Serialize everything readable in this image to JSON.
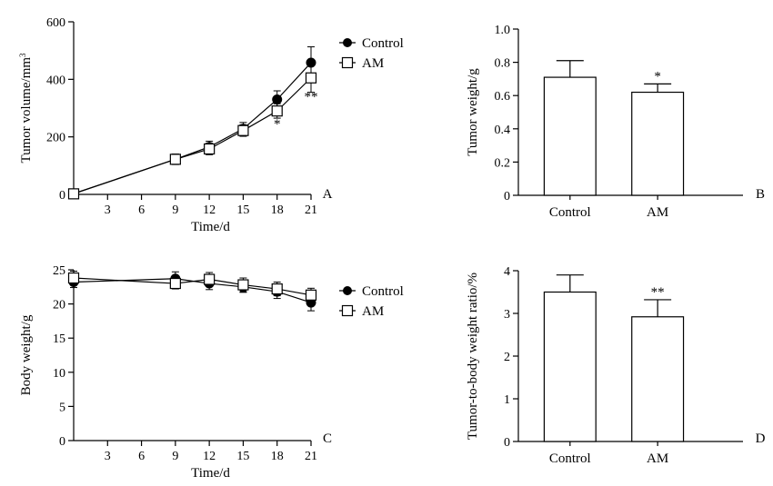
{
  "chart_data": [
    {
      "panel": "A",
      "type": "line",
      "xlabel": "Time/d",
      "ylabel": "Tumor volume/mm",
      "ylabel_sup": "3",
      "xlim": [
        0,
        21
      ],
      "ylim": [
        0,
        600
      ],
      "xticks": [
        3,
        6,
        9,
        12,
        15,
        18,
        21
      ],
      "yticks": [
        0,
        200,
        400,
        600
      ],
      "legend": "top-right",
      "series": [
        {
          "name": "Control",
          "marker": "filled-circle",
          "x": [
            0,
            9,
            12,
            15,
            18,
            21
          ],
          "values": [
            3,
            122,
            165,
            228,
            330,
            458
          ],
          "err": [
            5,
            18,
            20,
            22,
            30,
            55
          ]
        },
        {
          "name": "AM",
          "marker": "open-square",
          "x": [
            0,
            9,
            12,
            15,
            18,
            21
          ],
          "values": [
            2,
            122,
            158,
            222,
            290,
            405
          ],
          "err": [
            5,
            18,
            20,
            20,
            25,
            50
          ]
        }
      ],
      "annotations": [
        {
          "x": 18,
          "y": 230,
          "text": "*"
        },
        {
          "x": 21,
          "y": 325,
          "text": "**"
        }
      ]
    },
    {
      "panel": "B",
      "type": "bar",
      "categories": [
        "Control",
        "AM"
      ],
      "values": [
        0.71,
        0.62
      ],
      "err": [
        0.1,
        0.05
      ],
      "ylabel": "Tumor weight/g",
      "ylim": [
        0,
        1.0
      ],
      "yticks": [
        "0",
        "0.2",
        "0.4",
        "0.6",
        "0.8",
        "1.0"
      ],
      "annotations": [
        "",
        "*"
      ]
    },
    {
      "panel": "C",
      "type": "line",
      "xlabel": "Time/d",
      "ylabel": "Body weight/g",
      "xlim": [
        0,
        21
      ],
      "ylim": [
        0,
        25
      ],
      "xticks": [
        3,
        6,
        9,
        12,
        15,
        18,
        21
      ],
      "yticks": [
        0,
        5,
        10,
        15,
        20,
        25
      ],
      "legend": "top-right",
      "series": [
        {
          "name": "Control",
          "marker": "filled-circle",
          "x": [
            0,
            9,
            12,
            15,
            18,
            21
          ],
          "values": [
            23.2,
            23.7,
            23.0,
            22.5,
            21.8,
            20.2
          ],
          "err": [
            0.8,
            1.0,
            0.9,
            0.8,
            1.0,
            1.2
          ]
        },
        {
          "name": "AM",
          "marker": "open-square",
          "x": [
            0,
            9,
            12,
            15,
            18,
            21
          ],
          "values": [
            23.8,
            23.0,
            23.6,
            22.8,
            22.2,
            21.3
          ],
          "err": [
            1.0,
            0.8,
            1.0,
            1.0,
            1.0,
            1.0
          ]
        }
      ]
    },
    {
      "panel": "D",
      "type": "bar",
      "categories": [
        "Control",
        "AM"
      ],
      "values": [
        3.5,
        2.92
      ],
      "err": [
        0.4,
        0.4
      ],
      "ylabel": "Tumor-to-body weight ratio/%",
      "ylim": [
        0,
        4
      ],
      "yticks": [
        "0",
        "1",
        "2",
        "3",
        "4"
      ],
      "annotations": [
        "",
        "**"
      ]
    }
  ]
}
